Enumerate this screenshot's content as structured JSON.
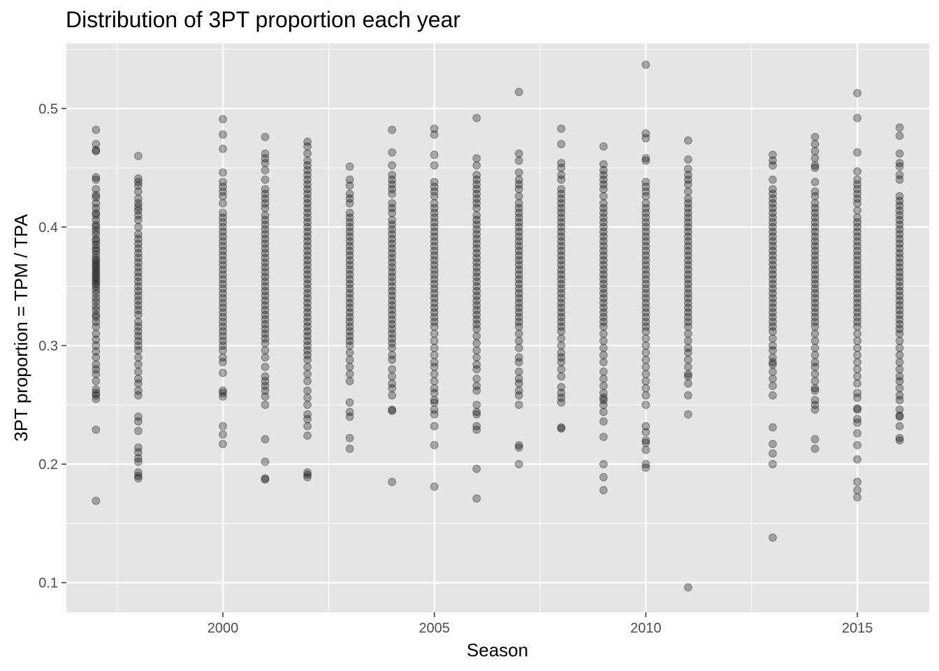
{
  "chart_data": {
    "type": "scatter",
    "title": "Distribution of 3PT proportion each year",
    "xlabel": "Season",
    "ylabel": "3PT proportion = TPM / TPA",
    "xlim": [
      1996.3,
      2016.7
    ],
    "ylim": [
      0.075,
      0.555
    ],
    "x_ticks": [
      2000,
      2005,
      2010,
      2015
    ],
    "x_tick_labels": [
      "2000",
      "2005",
      "2010",
      "2015"
    ],
    "y_ticks": [
      0.1,
      0.2,
      0.3,
      0.4,
      0.5
    ],
    "y_tick_labels": [
      "0.1",
      "0.2",
      "0.3",
      "0.4",
      "0.5"
    ],
    "grid": true,
    "point_color": "#000000",
    "point_alpha": 0.3,
    "panel_background": "#e5e5e5",
    "points": [
      {
        "x": 1997,
        "y": [
          0.482,
          0.47,
          0.465,
          0.464,
          0.442,
          0.44,
          0.432,
          0.427,
          0.425,
          0.42,
          0.416,
          0.412,
          0.41,
          0.406,
          0.402,
          0.4,
          0.397,
          0.394,
          0.39,
          0.388,
          0.385,
          0.382,
          0.38,
          0.377,
          0.374,
          0.372,
          0.37,
          0.368,
          0.366,
          0.364,
          0.362,
          0.36,
          0.358,
          0.356,
          0.354,
          0.352,
          0.35,
          0.347,
          0.344,
          0.34,
          0.337,
          0.333,
          0.33,
          0.326,
          0.324,
          0.32,
          0.316,
          0.31,
          0.305,
          0.3,
          0.295,
          0.29,
          0.284,
          0.28,
          0.276,
          0.27,
          0.263,
          0.26,
          0.258,
          0.255,
          0.229,
          0.169
        ]
      },
      {
        "x": 1998,
        "y": [
          0.46,
          0.441,
          0.438,
          0.435,
          0.43,
          0.424,
          0.42,
          0.417,
          0.414,
          0.41,
          0.406,
          0.4,
          0.394,
          0.39,
          0.386,
          0.382,
          0.378,
          0.374,
          0.37,
          0.366,
          0.362,
          0.358,
          0.354,
          0.35,
          0.346,
          0.342,
          0.338,
          0.334,
          0.33,
          0.326,
          0.32,
          0.316,
          0.312,
          0.308,
          0.304,
          0.3,
          0.296,
          0.29,
          0.284,
          0.278,
          0.272,
          0.268,
          0.262,
          0.258,
          0.24,
          0.236,
          0.228,
          0.214,
          0.21,
          0.205,
          0.202,
          0.193,
          0.19,
          0.188
        ]
      },
      {
        "x": 2000,
        "y": [
          0.491,
          0.478,
          0.466,
          0.446,
          0.438,
          0.434,
          0.43,
          0.426,
          0.42,
          0.412,
          0.408,
          0.404,
          0.4,
          0.396,
          0.392,
          0.388,
          0.384,
          0.38,
          0.376,
          0.372,
          0.368,
          0.364,
          0.36,
          0.356,
          0.352,
          0.348,
          0.344,
          0.34,
          0.336,
          0.332,
          0.328,
          0.324,
          0.32,
          0.316,
          0.312,
          0.308,
          0.304,
          0.3,
          0.296,
          0.29,
          0.286,
          0.277,
          0.262,
          0.26,
          0.257,
          0.232,
          0.225,
          0.217
        ]
      },
      {
        "x": 2001,
        "y": [
          0.476,
          0.462,
          0.458,
          0.454,
          0.448,
          0.44,
          0.432,
          0.428,
          0.424,
          0.42,
          0.416,
          0.41,
          0.406,
          0.402,
          0.398,
          0.394,
          0.39,
          0.386,
          0.382,
          0.378,
          0.374,
          0.37,
          0.366,
          0.362,
          0.358,
          0.354,
          0.35,
          0.346,
          0.342,
          0.338,
          0.334,
          0.33,
          0.326,
          0.322,
          0.318,
          0.314,
          0.31,
          0.306,
          0.302,
          0.296,
          0.29,
          0.282,
          0.274,
          0.27,
          0.266,
          0.262,
          0.257,
          0.25,
          0.221,
          0.202,
          0.188,
          0.187
        ]
      },
      {
        "x": 2002,
        "y": [
          0.472,
          0.468,
          0.462,
          0.456,
          0.452,
          0.448,
          0.444,
          0.44,
          0.436,
          0.432,
          0.428,
          0.424,
          0.42,
          0.416,
          0.412,
          0.408,
          0.404,
          0.4,
          0.396,
          0.392,
          0.388,
          0.384,
          0.38,
          0.376,
          0.372,
          0.368,
          0.364,
          0.36,
          0.356,
          0.352,
          0.348,
          0.344,
          0.34,
          0.336,
          0.332,
          0.328,
          0.324,
          0.32,
          0.316,
          0.312,
          0.308,
          0.304,
          0.3,
          0.296,
          0.292,
          0.288,
          0.282,
          0.276,
          0.27,
          0.262,
          0.256,
          0.25,
          0.242,
          0.238,
          0.232,
          0.224,
          0.193,
          0.191,
          0.189
        ]
      },
      {
        "x": 2003,
        "y": [
          0.451,
          0.44,
          0.435,
          0.428,
          0.424,
          0.42,
          0.412,
          0.408,
          0.404,
          0.4,
          0.396,
          0.392,
          0.388,
          0.384,
          0.38,
          0.376,
          0.372,
          0.368,
          0.364,
          0.36,
          0.356,
          0.352,
          0.348,
          0.344,
          0.34,
          0.336,
          0.332,
          0.328,
          0.324,
          0.32,
          0.316,
          0.312,
          0.308,
          0.304,
          0.3,
          0.294,
          0.288,
          0.282,
          0.276,
          0.27,
          0.252,
          0.244,
          0.24,
          0.222,
          0.213
        ]
      },
      {
        "x": 2004,
        "y": [
          0.482,
          0.463,
          0.452,
          0.444,
          0.44,
          0.436,
          0.432,
          0.428,
          0.42,
          0.416,
          0.412,
          0.406,
          0.402,
          0.398,
          0.394,
          0.39,
          0.386,
          0.382,
          0.378,
          0.374,
          0.37,
          0.366,
          0.362,
          0.358,
          0.354,
          0.35,
          0.346,
          0.342,
          0.338,
          0.334,
          0.33,
          0.326,
          0.322,
          0.318,
          0.314,
          0.31,
          0.306,
          0.302,
          0.298,
          0.292,
          0.288,
          0.28,
          0.274,
          0.268,
          0.264,
          0.258,
          0.246,
          0.245,
          0.185
        ]
      },
      {
        "x": 2005,
        "y": [
          0.483,
          0.478,
          0.461,
          0.452,
          0.438,
          0.434,
          0.43,
          0.426,
          0.42,
          0.416,
          0.412,
          0.408,
          0.404,
          0.4,
          0.396,
          0.392,
          0.388,
          0.384,
          0.38,
          0.376,
          0.372,
          0.368,
          0.364,
          0.36,
          0.356,
          0.352,
          0.348,
          0.344,
          0.34,
          0.336,
          0.332,
          0.328,
          0.324,
          0.32,
          0.316,
          0.31,
          0.304,
          0.298,
          0.292,
          0.286,
          0.282,
          0.276,
          0.27,
          0.264,
          0.26,
          0.254,
          0.252,
          0.246,
          0.242,
          0.232,
          0.216,
          0.181
        ]
      },
      {
        "x": 2006,
        "y": [
          0.492,
          0.458,
          0.452,
          0.444,
          0.44,
          0.436,
          0.432,
          0.428,
          0.424,
          0.42,
          0.416,
          0.41,
          0.406,
          0.402,
          0.398,
          0.394,
          0.39,
          0.386,
          0.382,
          0.378,
          0.374,
          0.37,
          0.366,
          0.362,
          0.358,
          0.354,
          0.35,
          0.346,
          0.342,
          0.338,
          0.334,
          0.33,
          0.326,
          0.322,
          0.318,
          0.314,
          0.308,
          0.302,
          0.296,
          0.29,
          0.284,
          0.28,
          0.272,
          0.266,
          0.262,
          0.25,
          0.244,
          0.242,
          0.232,
          0.229,
          0.196,
          0.171
        ]
      },
      {
        "x": 2007,
        "y": [
          0.514,
          0.462,
          0.456,
          0.446,
          0.44,
          0.436,
          0.432,
          0.426,
          0.42,
          0.416,
          0.412,
          0.408,
          0.404,
          0.4,
          0.396,
          0.392,
          0.388,
          0.384,
          0.38,
          0.376,
          0.372,
          0.368,
          0.364,
          0.36,
          0.356,
          0.352,
          0.348,
          0.344,
          0.34,
          0.336,
          0.332,
          0.328,
          0.324,
          0.32,
          0.316,
          0.31,
          0.304,
          0.298,
          0.29,
          0.286,
          0.278,
          0.272,
          0.268,
          0.262,
          0.258,
          0.25,
          0.216,
          0.214,
          0.2
        ]
      },
      {
        "x": 2008,
        "y": [
          0.483,
          0.47,
          0.454,
          0.45,
          0.444,
          0.44,
          0.432,
          0.428,
          0.424,
          0.42,
          0.416,
          0.412,
          0.408,
          0.404,
          0.4,
          0.396,
          0.392,
          0.388,
          0.384,
          0.38,
          0.376,
          0.372,
          0.368,
          0.364,
          0.36,
          0.356,
          0.352,
          0.348,
          0.344,
          0.34,
          0.336,
          0.332,
          0.328,
          0.324,
          0.32,
          0.316,
          0.312,
          0.306,
          0.3,
          0.294,
          0.29,
          0.286,
          0.28,
          0.274,
          0.265,
          0.26,
          0.256,
          0.252,
          0.231,
          0.23
        ]
      },
      {
        "x": 2009,
        "y": [
          0.468,
          0.453,
          0.448,
          0.444,
          0.44,
          0.436,
          0.432,
          0.426,
          0.42,
          0.416,
          0.412,
          0.408,
          0.404,
          0.4,
          0.396,
          0.392,
          0.388,
          0.384,
          0.38,
          0.376,
          0.372,
          0.368,
          0.364,
          0.36,
          0.356,
          0.352,
          0.348,
          0.344,
          0.34,
          0.336,
          0.332,
          0.328,
          0.324,
          0.32,
          0.316,
          0.31,
          0.304,
          0.298,
          0.292,
          0.286,
          0.278,
          0.272,
          0.266,
          0.26,
          0.256,
          0.254,
          0.25,
          0.244,
          0.236,
          0.223,
          0.2,
          0.189,
          0.178
        ]
      },
      {
        "x": 2010,
        "y": [
          0.537,
          0.479,
          0.475,
          0.458,
          0.456,
          0.438,
          0.434,
          0.43,
          0.426,
          0.42,
          0.416,
          0.412,
          0.408,
          0.404,
          0.4,
          0.396,
          0.392,
          0.388,
          0.384,
          0.38,
          0.376,
          0.372,
          0.368,
          0.364,
          0.36,
          0.356,
          0.352,
          0.348,
          0.344,
          0.34,
          0.336,
          0.332,
          0.328,
          0.324,
          0.32,
          0.316,
          0.312,
          0.306,
          0.3,
          0.294,
          0.288,
          0.282,
          0.276,
          0.27,
          0.264,
          0.258,
          0.25,
          0.232,
          0.227,
          0.22,
          0.218,
          0.212,
          0.2,
          0.197
        ]
      },
      {
        "x": 2011,
        "y": [
          0.473,
          0.457,
          0.449,
          0.444,
          0.44,
          0.436,
          0.43,
          0.424,
          0.42,
          0.416,
          0.412,
          0.408,
          0.404,
          0.4,
          0.396,
          0.392,
          0.388,
          0.384,
          0.38,
          0.376,
          0.372,
          0.368,
          0.364,
          0.36,
          0.356,
          0.352,
          0.348,
          0.344,
          0.34,
          0.336,
          0.332,
          0.328,
          0.324,
          0.32,
          0.316,
          0.31,
          0.304,
          0.298,
          0.294,
          0.288,
          0.282,
          0.276,
          0.274,
          0.268,
          0.258,
          0.242,
          0.096
        ]
      },
      {
        "x": 2013,
        "y": [
          0.461,
          0.456,
          0.452,
          0.44,
          0.432,
          0.428,
          0.424,
          0.42,
          0.416,
          0.412,
          0.408,
          0.404,
          0.4,
          0.396,
          0.392,
          0.388,
          0.384,
          0.38,
          0.376,
          0.372,
          0.368,
          0.364,
          0.36,
          0.356,
          0.352,
          0.348,
          0.344,
          0.34,
          0.336,
          0.332,
          0.328,
          0.324,
          0.32,
          0.316,
          0.312,
          0.306,
          0.3,
          0.296,
          0.29,
          0.286,
          0.284,
          0.278,
          0.272,
          0.266,
          0.258,
          0.231,
          0.217,
          0.209,
          0.2,
          0.138
        ]
      },
      {
        "x": 2014,
        "y": [
          0.476,
          0.47,
          0.464,
          0.458,
          0.452,
          0.45,
          0.438,
          0.43,
          0.426,
          0.42,
          0.416,
          0.412,
          0.408,
          0.404,
          0.4,
          0.396,
          0.392,
          0.388,
          0.384,
          0.38,
          0.376,
          0.372,
          0.368,
          0.364,
          0.36,
          0.356,
          0.352,
          0.348,
          0.344,
          0.34,
          0.336,
          0.332,
          0.328,
          0.324,
          0.32,
          0.316,
          0.31,
          0.304,
          0.298,
          0.292,
          0.286,
          0.282,
          0.276,
          0.27,
          0.264,
          0.262,
          0.254,
          0.25,
          0.246,
          0.221,
          0.213
        ]
      },
      {
        "x": 2015,
        "y": [
          0.513,
          0.492,
          0.463,
          0.447,
          0.44,
          0.436,
          0.432,
          0.428,
          0.424,
          0.42,
          0.414,
          0.408,
          0.404,
          0.4,
          0.396,
          0.392,
          0.388,
          0.384,
          0.38,
          0.376,
          0.372,
          0.368,
          0.364,
          0.36,
          0.356,
          0.352,
          0.348,
          0.344,
          0.34,
          0.336,
          0.332,
          0.328,
          0.324,
          0.32,
          0.316,
          0.31,
          0.304,
          0.298,
          0.292,
          0.286,
          0.28,
          0.274,
          0.268,
          0.26,
          0.256,
          0.247,
          0.246,
          0.238,
          0.235,
          0.226,
          0.216,
          0.204,
          0.185,
          0.178,
          0.172
        ]
      },
      {
        "x": 2016,
        "y": [
          0.484,
          0.477,
          0.462,
          0.454,
          0.451,
          0.444,
          0.44,
          0.426,
          0.422,
          0.418,
          0.414,
          0.41,
          0.406,
          0.402,
          0.398,
          0.394,
          0.39,
          0.386,
          0.382,
          0.378,
          0.374,
          0.37,
          0.366,
          0.362,
          0.358,
          0.354,
          0.35,
          0.346,
          0.342,
          0.338,
          0.334,
          0.33,
          0.326,
          0.322,
          0.318,
          0.314,
          0.31,
          0.304,
          0.298,
          0.292,
          0.286,
          0.28,
          0.274,
          0.27,
          0.264,
          0.258,
          0.254,
          0.246,
          0.241,
          0.24,
          0.232,
          0.222,
          0.22
        ]
      }
    ]
  }
}
